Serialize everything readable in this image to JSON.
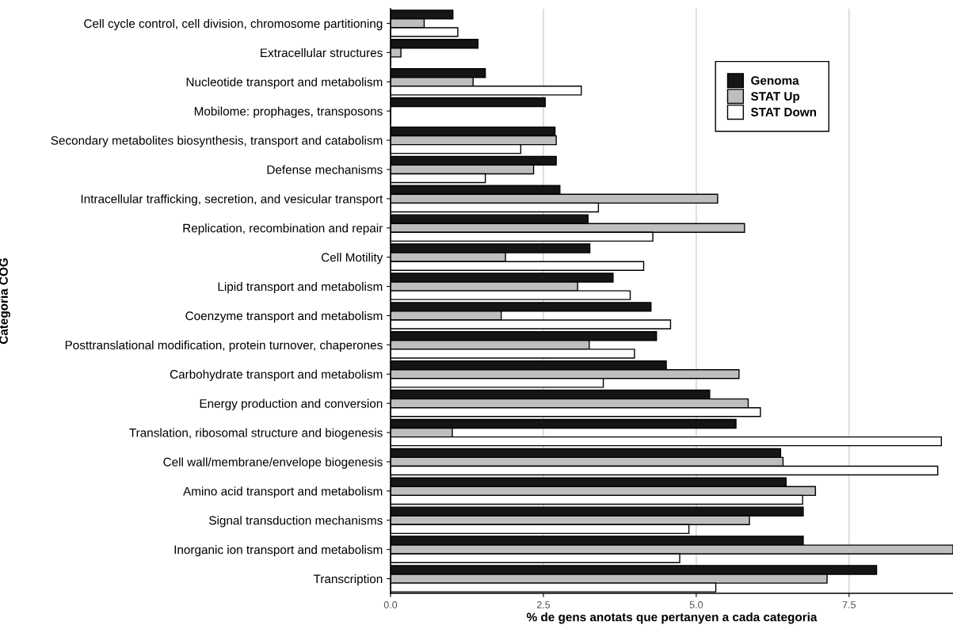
{
  "chart_data": {
    "type": "bar",
    "orientation": "horizontal",
    "xlabel": "% de gens anotats que pertanyen a cada categoria",
    "ylabel": "Categoria COG",
    "categories": [
      "Cell cycle control, cell division, chromosome partitioning",
      "Extracellular structures",
      "Nucleotide transport and metabolism",
      "Mobilome: prophages, transposons",
      "Secondary metabolites biosynthesis, transport and catabolism",
      "Defense mechanisms",
      "Intracellular trafficking, secretion, and vesicular transport",
      "Replication, recombination and repair",
      "Cell Motility",
      "Lipid transport and metabolism",
      "Coenzyme transport and metabolism",
      "Posttranslational modification, protein turnover, chaperones",
      "Carbohydrate transport and metabolism",
      "Energy production and conversion",
      "Translation, ribosomal structure and biogenesis",
      "Cell wall/membrane/envelope biogenesis",
      "Amino acid transport and metabolism",
      "Signal transduction mechanisms",
      "Inorganic ion transport and metabolism",
      "Transcription"
    ],
    "series": [
      {
        "name": "Genoma",
        "color": "#151515",
        "values": [
          1.02,
          1.43,
          1.55,
          2.53,
          2.69,
          2.71,
          2.77,
          3.23,
          3.26,
          3.64,
          4.26,
          4.35,
          4.51,
          5.22,
          5.65,
          6.38,
          6.47,
          6.75,
          6.75,
          7.95
        ]
      },
      {
        "name": "STAT Up",
        "color": "#bebebe",
        "values": [
          0.55,
          0.17,
          1.35,
          0,
          2.71,
          2.34,
          5.35,
          5.79,
          1.88,
          3.06,
          1.81,
          3.25,
          5.7,
          5.85,
          1.01,
          6.42,
          6.95,
          5.87,
          9.2,
          7.14
        ]
      },
      {
        "name": "STAT Down",
        "color": "#ffffff",
        "values": [
          1.1,
          0,
          3.12,
          0,
          2.13,
          1.55,
          3.4,
          4.29,
          4.14,
          3.92,
          4.58,
          3.99,
          3.48,
          6.05,
          9.01,
          8.95,
          6.74,
          4.88,
          4.73,
          5.32
        ]
      }
    ],
    "xlim": [
      0,
      9.2
    ],
    "xticks": [
      {
        "value": 0,
        "label": "0.0"
      },
      {
        "value": 2.5,
        "label": "2.5"
      },
      {
        "value": 5,
        "label": "5.0"
      },
      {
        "value": 7.5,
        "label": "7.5"
      }
    ],
    "grid": "x",
    "legend": "top right"
  }
}
